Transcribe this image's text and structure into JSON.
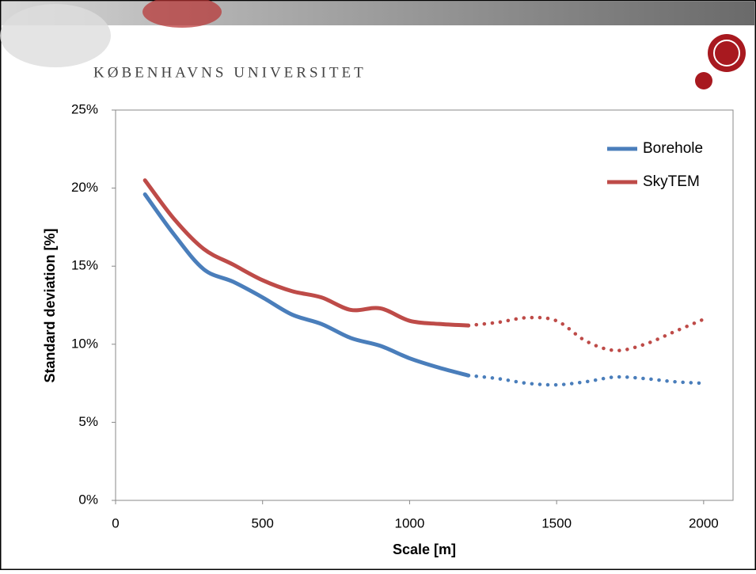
{
  "header": {
    "title": "KØBENHAVNS UNIVERSITET"
  },
  "chart_data": {
    "type": "line",
    "x": [
      100,
      200,
      300,
      400,
      500,
      600,
      700,
      800,
      900,
      1000,
      1100,
      1200,
      1300,
      1400,
      1500,
      1600,
      1700,
      1800,
      1900,
      2000
    ],
    "series": [
      {
        "name": "Borehole",
        "color": "#4a7ebb",
        "dotted_from_x": 1200,
        "values": [
          19.6,
          17.0,
          14.8,
          14.0,
          13.0,
          11.9,
          11.3,
          10.4,
          9.9,
          9.1,
          8.5,
          8.0,
          7.8,
          7.5,
          7.4,
          7.6,
          7.9,
          7.8,
          7.6,
          7.5
        ]
      },
      {
        "name": "SkyTEM",
        "color": "#be4b48",
        "dotted_from_x": 1200,
        "values": [
          20.5,
          18.0,
          16.1,
          15.1,
          14.1,
          13.4,
          13.0,
          12.2,
          12.3,
          11.5,
          11.3,
          11.2,
          11.4,
          11.7,
          11.5,
          10.2,
          9.6,
          10.0,
          10.8,
          11.6
        ]
      }
    ],
    "x_label": "Scale [m]",
    "y_label": "Standard deviation [%]",
    "xlim": [
      0,
      2100
    ],
    "xticks": [
      0,
      500,
      1000,
      1500,
      2000
    ],
    "ylim": [
      0,
      25
    ],
    "yticks": [
      {
        "value": 0,
        "label": "0%"
      },
      {
        "value": 5,
        "label": "5%"
      },
      {
        "value": 10,
        "label": "10%"
      },
      {
        "value": 15,
        "label": "15%"
      },
      {
        "value": 20,
        "label": "20%"
      },
      {
        "value": 25,
        "label": "25%"
      }
    ],
    "legend": "top-right",
    "grid": false
  }
}
